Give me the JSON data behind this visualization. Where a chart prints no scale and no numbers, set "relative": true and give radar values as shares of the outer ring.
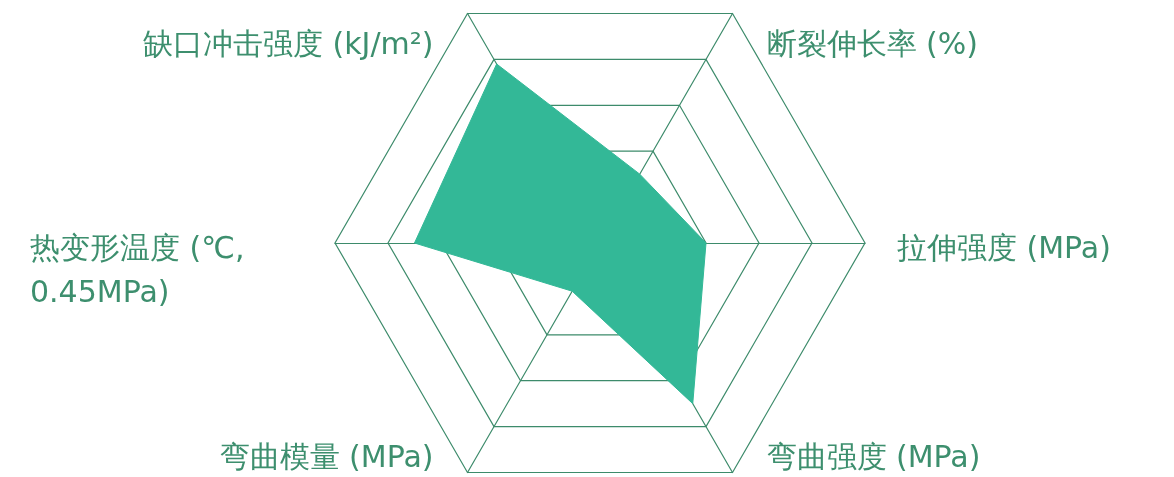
{
  "chart_data": {
    "type": "radar",
    "relative": true,
    "categories": [
      "缺口冲击强度 (kJ/m²)",
      "断裂伸长率 (%)",
      "拉伸强度 (MPa)",
      "弯曲强度 (MPa)",
      "弯曲模量 (MPa)",
      "热变形温度 (℃,\n0.45MPa)"
    ],
    "series": [
      {
        "color": "#33b897",
        "values": [
          0.78,
          0.3,
          0.4,
          0.7,
          0.21,
          0.7
        ]
      }
    ]
  }
}
